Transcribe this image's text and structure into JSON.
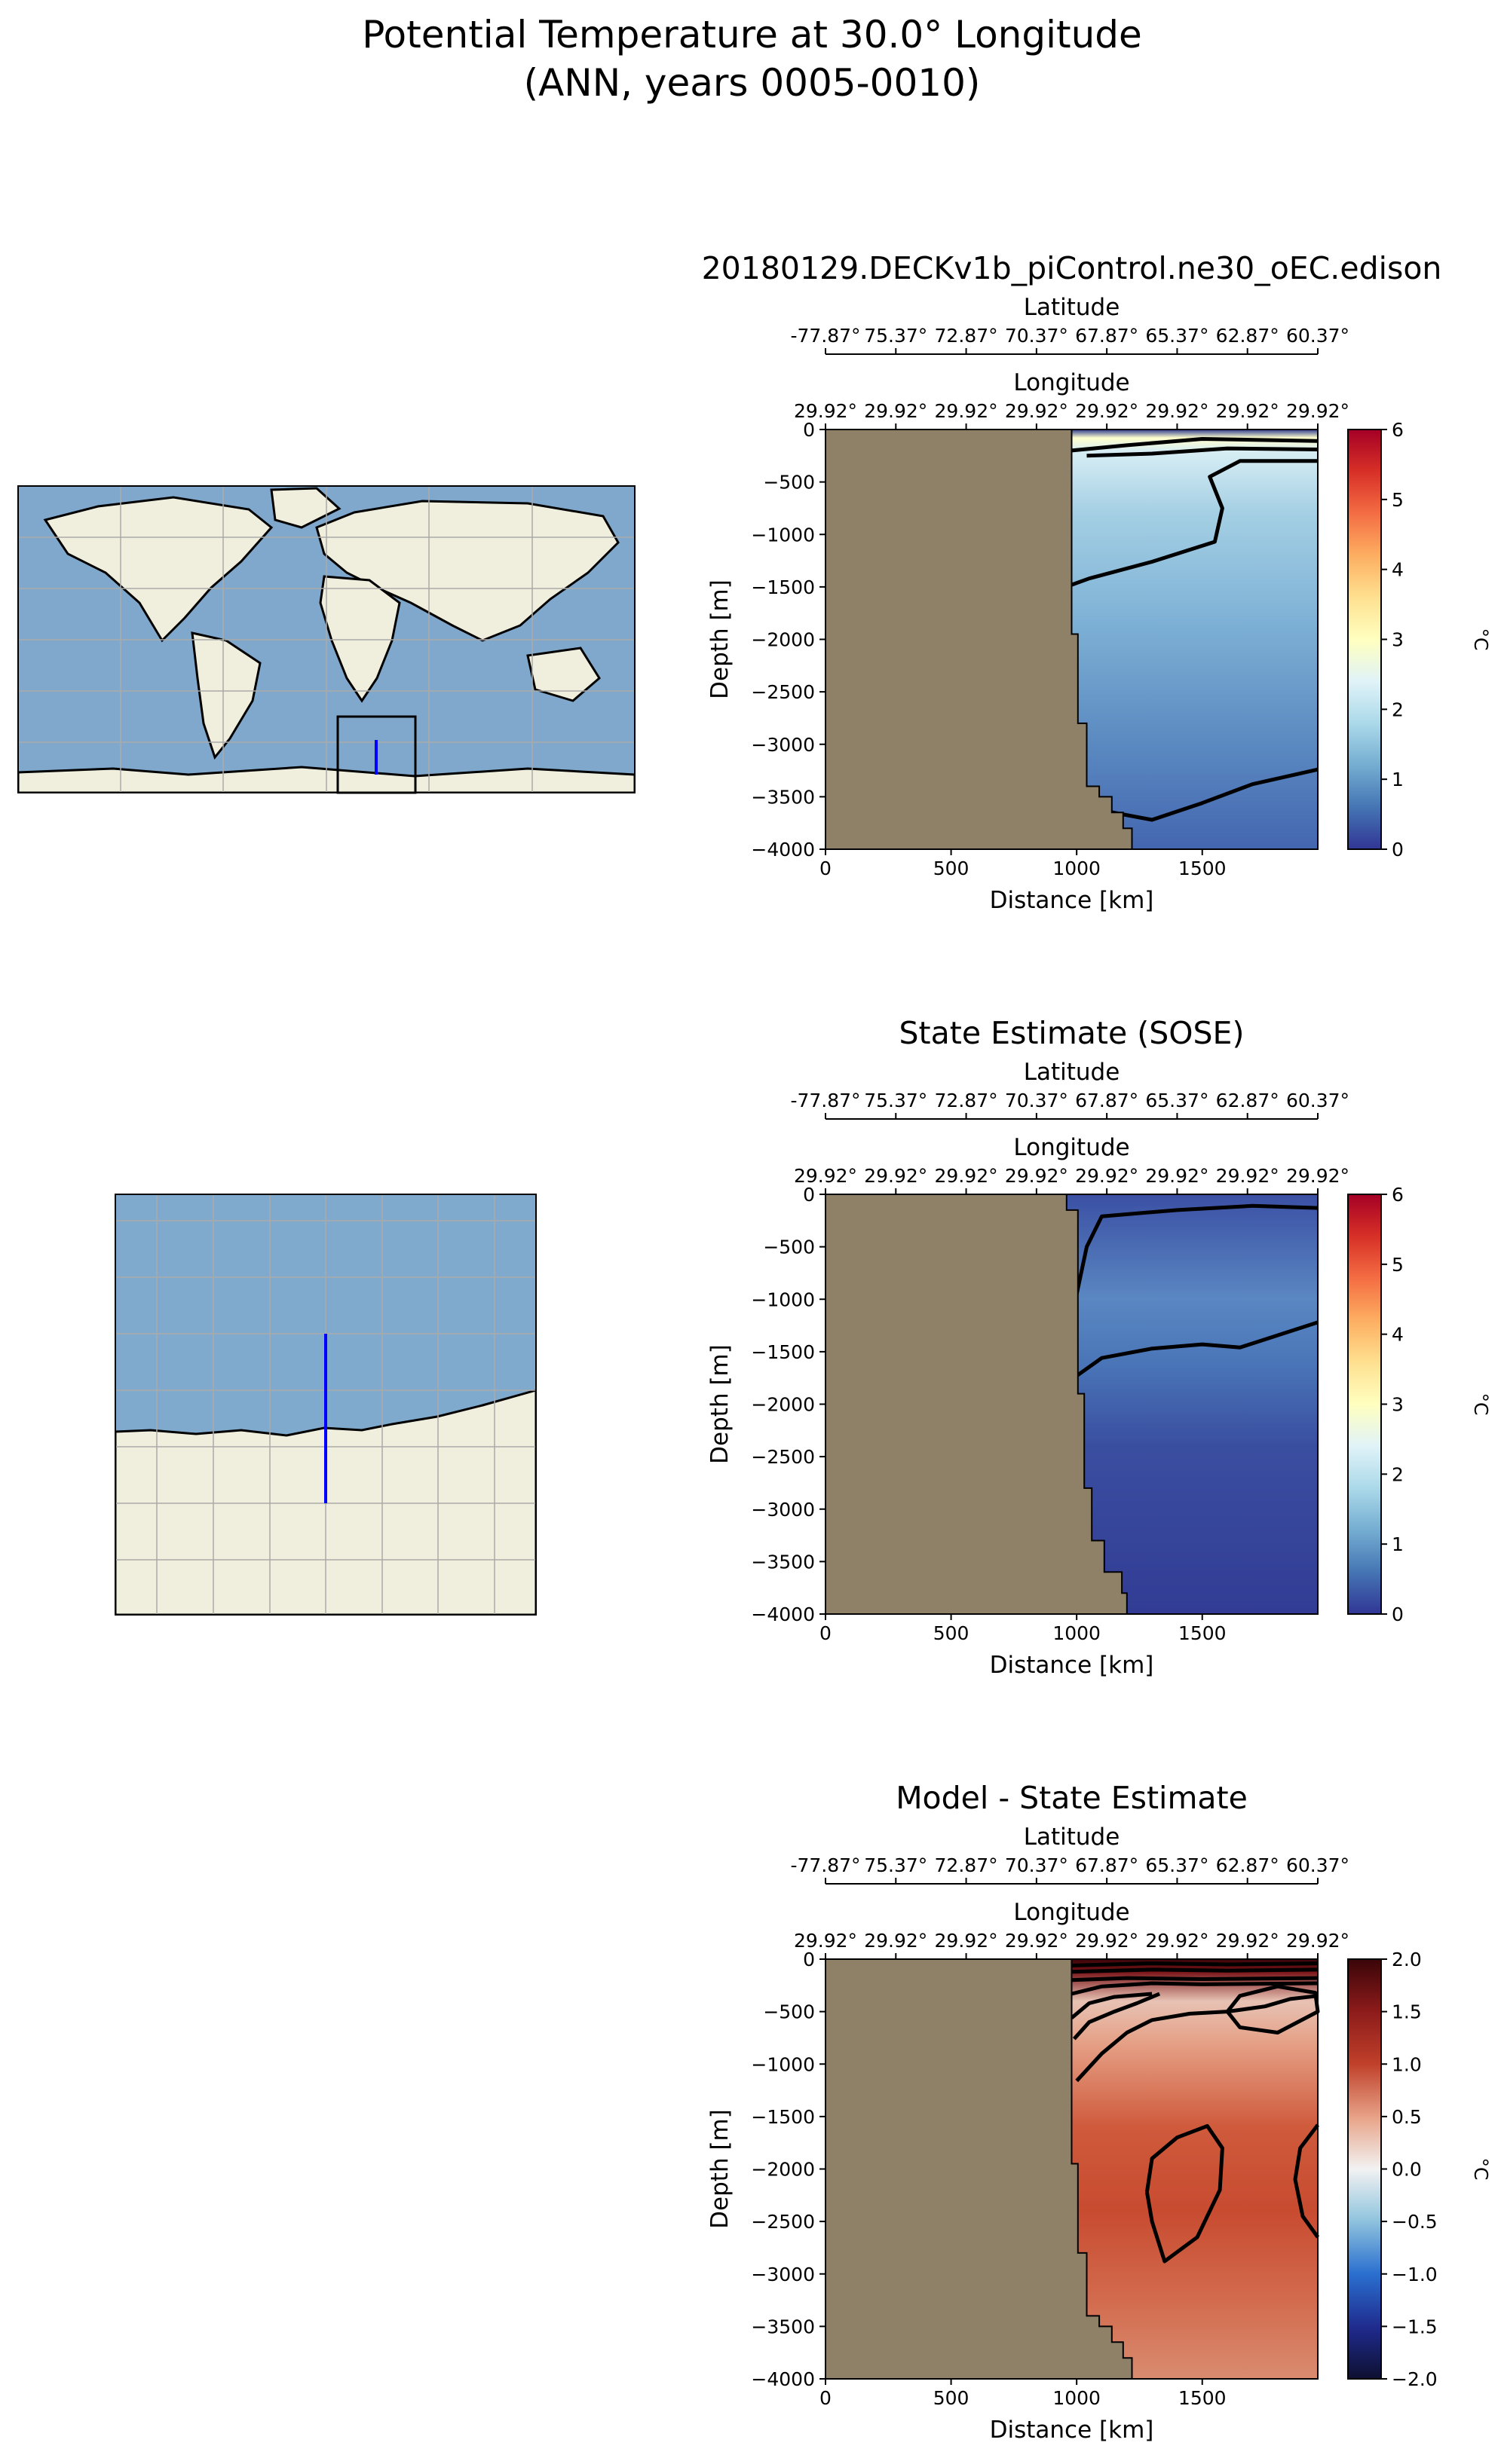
{
  "figure": {
    "title_line1": "Potential Temperature at 30.0° Longitude",
    "title_line2": "(ANN, years 0005-0010)"
  },
  "panel_titles": [
    "20180129.DECKv1b_piControl.ne30_oEC.edison",
    "State Estimate (SOSE)",
    "Model - State Estimate"
  ],
  "colors": {
    "land_section": "#8f8168",
    "map_ocean": "#7fa8cc",
    "map_land": "#f0eedc",
    "transect_line": "#0000ff",
    "contour": "#000000"
  },
  "chart_data": [
    {
      "type": "heatmap",
      "title": "20180129.DECKv1b_piControl.ne30_oEC.edison",
      "xlabel": "Distance [km]",
      "ylabel": "Depth [m]",
      "top_axis_1_label": "Latitude",
      "top_axis_1_ticks": [
        "-77.87°",
        "75.37°",
        "72.87°",
        "70.37°",
        "67.87°",
        "65.37°",
        "62.87°",
        "60.37°"
      ],
      "top_axis_2_label": "Longitude",
      "top_axis_2_ticks": [
        "29.92°",
        "29.92°",
        "29.92°",
        "29.92°",
        "29.92°",
        "29.92°",
        "29.92°",
        "29.92°"
      ],
      "x_ticks": [
        "0",
        "500",
        "1000",
        "1500"
      ],
      "y_ticks": [
        "0",
        "−500",
        "−1000",
        "−1500",
        "−2000",
        "−2500",
        "−3000",
        "−3500",
        "−4000"
      ],
      "xlim": [
        0,
        1960
      ],
      "ylim": [
        -4000,
        0
      ],
      "colorbar": {
        "label": "°C",
        "colormap": "RdYlBu_r",
        "range": [
          0,
          6
        ],
        "ticks": [
          "0",
          "1",
          "2",
          "3",
          "4",
          "5",
          "6"
        ]
      },
      "bathymetry_edge": [
        [
          0,
          0
        ],
        [
          980,
          0
        ],
        [
          980,
          -1950
        ],
        [
          1005,
          -1950
        ],
        [
          1005,
          -2800
        ],
        [
          1040,
          -2800
        ],
        [
          1040,
          -3400
        ],
        [
          1090,
          -3400
        ],
        [
          1090,
          -3500
        ],
        [
          1140,
          -3500
        ],
        [
          1140,
          -3650
        ],
        [
          1185,
          -3650
        ],
        [
          1185,
          -3800
        ],
        [
          1220,
          -3800
        ],
        [
          1220,
          -4000
        ]
      ],
      "field_profile": [
        [
          0,
          0.5
        ],
        [
          -100,
          3.0
        ],
        [
          -300,
          1.6
        ],
        [
          -1500,
          1.2
        ],
        [
          -3000,
          0.8
        ],
        [
          -4000,
          0.55
        ]
      ],
      "contours": [
        [
          [
            980,
            -200
          ],
          [
            1200,
            -150
          ],
          [
            1500,
            -90
          ],
          [
            1960,
            -110
          ]
        ],
        [
          [
            1040,
            -250
          ],
          [
            1300,
            -230
          ],
          [
            1600,
            -180
          ],
          [
            1960,
            -190
          ]
        ],
        [
          [
            980,
            -1480
          ],
          [
            1050,
            -1420
          ],
          [
            1300,
            -1260
          ],
          [
            1550,
            -1070
          ],
          [
            1580,
            -750
          ],
          [
            1530,
            -450
          ],
          [
            1650,
            -300
          ],
          [
            1960,
            -300
          ]
        ],
        [
          [
            1100,
            -3630
          ],
          [
            1300,
            -3720
          ],
          [
            1500,
            -3560
          ],
          [
            1700,
            -3380
          ],
          [
            1960,
            -3240
          ]
        ]
      ]
    },
    {
      "type": "heatmap",
      "title": "State Estimate (SOSE)",
      "xlabel": "Distance [km]",
      "ylabel": "Depth [m]",
      "top_axis_1_label": "Latitude",
      "top_axis_1_ticks": [
        "-77.87°",
        "75.37°",
        "72.87°",
        "70.37°",
        "67.87°",
        "65.37°",
        "62.87°",
        "60.37°"
      ],
      "top_axis_2_label": "Longitude",
      "top_axis_2_ticks": [
        "29.92°",
        "29.92°",
        "29.92°",
        "29.92°",
        "29.92°",
        "29.92°",
        "29.92°",
        "29.92°"
      ],
      "x_ticks": [
        "0",
        "500",
        "1000",
        "1500"
      ],
      "y_ticks": [
        "0",
        "−500",
        "−1000",
        "−1500",
        "−2000",
        "−2500",
        "−3000",
        "−3500",
        "−4000"
      ],
      "xlim": [
        0,
        1960
      ],
      "ylim": [
        -4000,
        0
      ],
      "colorbar": {
        "label": "°C",
        "colormap": "RdYlBu_r",
        "range": [
          0,
          6
        ],
        "ticks": [
          "0",
          "1",
          "2",
          "3",
          "4",
          "5",
          "6"
        ]
      },
      "bathymetry_edge": [
        [
          0,
          0
        ],
        [
          960,
          0
        ],
        [
          960,
          -150
        ],
        [
          1005,
          -150
        ],
        [
          1005,
          -1900
        ],
        [
          1030,
          -1900
        ],
        [
          1030,
          -2800
        ],
        [
          1060,
          -2800
        ],
        [
          1060,
          -3300
        ],
        [
          1110,
          -3300
        ],
        [
          1110,
          -3600
        ],
        [
          1180,
          -3600
        ],
        [
          1180,
          -3800
        ],
        [
          1200,
          -3800
        ],
        [
          1200,
          -4000
        ]
      ],
      "field_profile": [
        [
          0,
          0.2
        ],
        [
          -300,
          0.55
        ],
        [
          -1000,
          0.9
        ],
        [
          -1500,
          0.8
        ],
        [
          -2200,
          0.45
        ],
        [
          -4000,
          0.15
        ]
      ],
      "contours": [
        [
          [
            1000,
            -950
          ],
          [
            1040,
            -500
          ],
          [
            1100,
            -210
          ],
          [
            1400,
            -150
          ],
          [
            1700,
            -110
          ],
          [
            1960,
            -130
          ]
        ],
        [
          [
            1000,
            -1730
          ],
          [
            1100,
            -1560
          ],
          [
            1300,
            -1470
          ],
          [
            1500,
            -1430
          ],
          [
            1650,
            -1460
          ],
          [
            1960,
            -1220
          ]
        ]
      ]
    },
    {
      "type": "heatmap",
      "title": "Model - State Estimate",
      "xlabel": "Distance [km]",
      "ylabel": "Depth [m]",
      "top_axis_1_label": "Latitude",
      "top_axis_1_ticks": [
        "-77.87°",
        "75.37°",
        "72.87°",
        "70.37°",
        "67.87°",
        "65.37°",
        "62.87°",
        "60.37°"
      ],
      "top_axis_2_label": "Longitude",
      "top_axis_2_ticks": [
        "29.92°",
        "29.92°",
        "29.92°",
        "29.92°",
        "29.92°",
        "29.92°",
        "29.92°",
        "29.92°"
      ],
      "x_ticks": [
        "0",
        "500",
        "1000",
        "1500"
      ],
      "y_ticks": [
        "0",
        "−500",
        "−1000",
        "−1500",
        "−2000",
        "−2500",
        "−3000",
        "−3500",
        "−4000"
      ],
      "xlim": [
        0,
        1960
      ],
      "ylim": [
        -4000,
        0
      ],
      "colorbar": {
        "label": "°C",
        "colormap": "RdBu_r",
        "range": [
          -2,
          2
        ],
        "ticks": [
          "−2.0",
          "−1.5",
          "−1.0",
          "−0.5",
          "0.0",
          "0.5",
          "1.0",
          "1.5",
          "2.0"
        ]
      },
      "bathymetry_edge": [
        [
          0,
          0
        ],
        [
          980,
          0
        ],
        [
          980,
          -1950
        ],
        [
          1005,
          -1950
        ],
        [
          1005,
          -2800
        ],
        [
          1040,
          -2800
        ],
        [
          1040,
          -3400
        ],
        [
          1090,
          -3400
        ],
        [
          1090,
          -3500
        ],
        [
          1140,
          -3500
        ],
        [
          1140,
          -3650
        ],
        [
          1185,
          -3650
        ],
        [
          1185,
          -3800
        ],
        [
          1220,
          -3800
        ],
        [
          1220,
          -4000
        ]
      ],
      "field_profile": [
        [
          0,
          2.0
        ],
        [
          -150,
          1.5
        ],
        [
          -400,
          0.6
        ],
        [
          -700,
          0.35
        ],
        [
          -1200,
          0.75
        ],
        [
          -2200,
          0.95
        ],
        [
          -3200,
          0.8
        ],
        [
          -4000,
          0.6
        ]
      ],
      "contours": [
        [
          [
            980,
            -60
          ],
          [
            1300,
            -40
          ],
          [
            1600,
            -50
          ],
          [
            1960,
            -40
          ]
        ],
        [
          [
            980,
            -120
          ],
          [
            1300,
            -100
          ],
          [
            1600,
            -110
          ],
          [
            1960,
            -100
          ]
        ],
        [
          [
            980,
            -200
          ],
          [
            1200,
            -180
          ],
          [
            1500,
            -190
          ],
          [
            1960,
            -180
          ]
        ],
        [
          [
            980,
            -330
          ],
          [
            1100,
            -260
          ],
          [
            1300,
            -230
          ],
          [
            1500,
            -240
          ],
          [
            1960,
            -230
          ]
        ],
        [
          [
            980,
            -560
          ],
          [
            1050,
            -420
          ],
          [
            1150,
            -360
          ],
          [
            1300,
            -330
          ]
        ],
        [
          [
            990,
            -760
          ],
          [
            1050,
            -600
          ],
          [
            1150,
            -500
          ],
          [
            1240,
            -420
          ],
          [
            1330,
            -330
          ]
        ],
        [
          [
            1000,
            -1160
          ],
          [
            1100,
            -900
          ],
          [
            1200,
            -700
          ],
          [
            1300,
            -580
          ],
          [
            1450,
            -520
          ],
          [
            1600,
            -500
          ],
          [
            1750,
            -450
          ],
          [
            1850,
            -380
          ],
          [
            1960,
            -350
          ]
        ],
        [
          [
            1600,
            -500
          ],
          [
            1650,
            -350
          ],
          [
            1800,
            -260
          ],
          [
            1950,
            -320
          ],
          [
            1960,
            -500
          ],
          [
            1800,
            -700
          ],
          [
            1650,
            -650
          ],
          [
            1600,
            -500
          ]
        ],
        [
          [
            1280,
            -2220
          ],
          [
            1300,
            -1900
          ],
          [
            1400,
            -1700
          ],
          [
            1520,
            -1590
          ],
          [
            1580,
            -1800
          ],
          [
            1570,
            -2200
          ],
          [
            1480,
            -2650
          ],
          [
            1350,
            -2880
          ],
          [
            1300,
            -2500
          ],
          [
            1280,
            -2220
          ]
        ],
        [
          [
            1960,
            -1580
          ],
          [
            1890,
            -1800
          ],
          [
            1870,
            -2100
          ],
          [
            1900,
            -2450
          ],
          [
            1960,
            -2650
          ]
        ]
      ]
    }
  ],
  "maps": {
    "global": {
      "projection": "PlateCarree",
      "highlight_box": "Southern Ocean transect region",
      "transect": "30.0° Longitude"
    },
    "regional": {
      "projection": "PlateCarree",
      "transect": "30.0° Longitude"
    }
  }
}
